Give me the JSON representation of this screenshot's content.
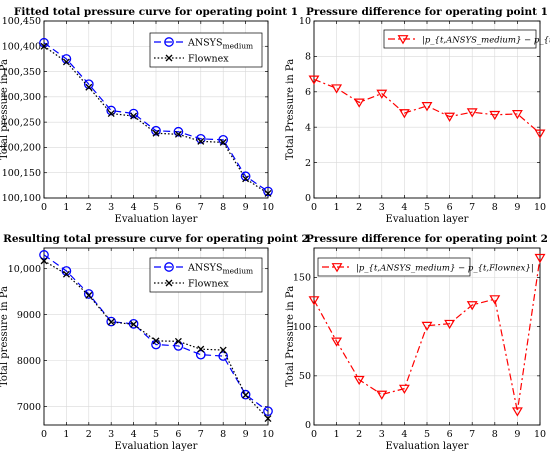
{
  "chart_data": [
    {
      "type": "line",
      "title": "Fitted total pressure curve for operating point 1",
      "xlabel": "Evaluation layer",
      "ylabel": "Total pressure in Pa",
      "x": [
        0,
        1,
        2,
        3,
        4,
        5,
        6,
        7,
        8,
        9,
        10
      ],
      "xticks": [
        0,
        1,
        2,
        3,
        4,
        5,
        6,
        7,
        8,
        9,
        10
      ],
      "xlim": [
        0,
        10
      ],
      "ylim": [
        100100,
        100450
      ],
      "yticks": [
        100100,
        100150,
        100200,
        100250,
        100300,
        100350,
        100400,
        100450
      ],
      "yticklabels": [
        "100,100",
        "100,150",
        "100,200",
        "100,250",
        "100,300",
        "100,350",
        "100,400",
        "100,450"
      ],
      "grid": true,
      "legend_position": "top-right",
      "series": [
        {
          "name": "ANSYS",
          "name_sub": "medium",
          "color": "#0000ff",
          "line_style": "dashed",
          "marker": "circle",
          "values": [
            100407,
            100375,
            100325,
            100273,
            100267,
            100233,
            100231,
            100217,
            100215,
            100143,
            100113
          ]
        },
        {
          "name": "Flownex",
          "name_sub": "",
          "color": "#000000",
          "line_style": "dotted",
          "marker": "x",
          "values": [
            100400,
            100369,
            100319,
            100267,
            100262,
            100228,
            100226,
            100212,
            100210,
            100138,
            100109
          ]
        }
      ]
    },
    {
      "type": "line",
      "title": "Pressure difference for operating point 1",
      "xlabel": "Evaluation layer",
      "ylabel": "Total Pressure in Pa",
      "x": [
        0,
        1,
        2,
        3,
        4,
        5,
        6,
        7,
        8,
        9,
        10
      ],
      "xticks": [
        0,
        1,
        2,
        3,
        4,
        5,
        6,
        7,
        8,
        9,
        10
      ],
      "xlim": [
        0,
        10
      ],
      "ylim": [
        0,
        10
      ],
      "yticks": [
        0,
        2,
        4,
        6,
        8,
        10
      ],
      "yticklabels": [
        "0",
        "2",
        "4",
        "6",
        "8",
        "10"
      ],
      "grid": true,
      "legend_position": "top-right",
      "series": [
        {
          "name": "|p_{t,ANSYS_medium} − p_{t,Flownex}|",
          "color": "#ff0000",
          "line_style": "dashdot",
          "marker": "triangle-down",
          "values": [
            6.7,
            6.2,
            5.4,
            5.9,
            4.8,
            5.2,
            4.6,
            4.85,
            4.7,
            4.75,
            3.65
          ]
        }
      ]
    },
    {
      "type": "line",
      "title": "Resulting total pressure curve for operating point 2",
      "xlabel": "Evaluation layer",
      "ylabel": "Total pressure in Pa",
      "x": [
        0,
        1,
        2,
        3,
        4,
        5,
        6,
        7,
        8,
        9,
        10
      ],
      "xticks": [
        0,
        1,
        2,
        3,
        4,
        5,
        6,
        7,
        8,
        9,
        10
      ],
      "xlim": [
        0,
        10
      ],
      "ylim": [
        6600,
        10450
      ],
      "yticks": [
        7000,
        8000,
        9000,
        10000
      ],
      "yticklabels": [
        "7000",
        "8000",
        "9000",
        "10,000"
      ],
      "grid": true,
      "legend_position": "top-right",
      "series": [
        {
          "name": "ANSYS",
          "name_sub": "medium",
          "color": "#0000ff",
          "line_style": "dashed",
          "marker": "circle",
          "values": [
            10300,
            9950,
            9450,
            8850,
            8800,
            8350,
            8320,
            8130,
            8100,
            7260,
            6900
          ]
        },
        {
          "name": "Flownex",
          "name_sub": "",
          "color": "#000000",
          "line_style": "dotted",
          "marker": "x",
          "values": [
            10170,
            9880,
            9420,
            8840,
            8790,
            8430,
            8420,
            8250,
            8230,
            7250,
            6740
          ]
        }
      ]
    },
    {
      "type": "line",
      "title": "Pressure difference for operating point 2",
      "xlabel": "Evaluation layer",
      "ylabel": "Total Pressure in Pa",
      "x": [
        0,
        1,
        2,
        3,
        4,
        5,
        6,
        7,
        8,
        9,
        10
      ],
      "xticks": [
        0,
        1,
        2,
        3,
        4,
        5,
        6,
        7,
        8,
        9,
        10
      ],
      "xlim": [
        0,
        10
      ],
      "ylim": [
        0,
        180
      ],
      "yticks": [
        0,
        50,
        100,
        150
      ],
      "yticklabels": [
        "0",
        "50",
        "100",
        "150"
      ],
      "grid": true,
      "legend_position": "top-left",
      "series": [
        {
          "name": "|p_{t,ANSYS_medium} − p_{t,Flownex}|",
          "color": "#ff0000",
          "line_style": "dashdot",
          "marker": "triangle-down",
          "values": [
            127,
            85,
            46,
            31,
            37,
            101,
            103,
            122,
            128,
            14,
            170
          ]
        }
      ]
    }
  ]
}
